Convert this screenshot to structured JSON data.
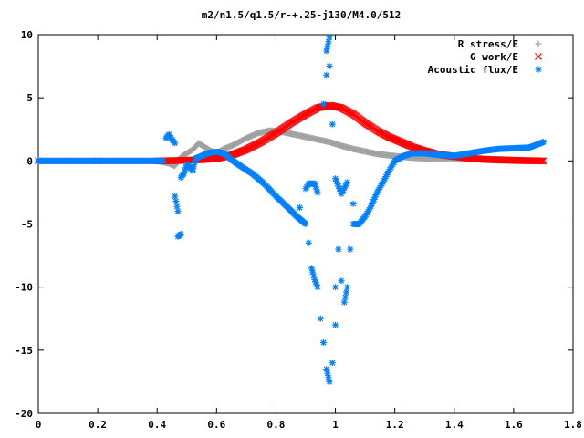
{
  "chart_data": {
    "type": "scatter",
    "title": "m2/n1.5/q1.5/r-+.25-j130/M4.0/512",
    "xlim": [
      0,
      1.8
    ],
    "ylim": [
      -20,
      10
    ],
    "x_ticks": [
      "0",
      "0.2",
      "0.4",
      "0.6",
      "0.8",
      "1",
      "1.2",
      "1.4",
      "1.6",
      "1.8"
    ],
    "y_ticks": [
      "10",
      "5",
      "0",
      "-5",
      "-10",
      "-15",
      "-20"
    ],
    "legend_position": "top-right",
    "series": [
      {
        "name": "R stress/E",
        "marker": "+",
        "color": "#a0a0a0",
        "points": [
          [
            0,
            0
          ],
          [
            0.1,
            0
          ],
          [
            0.2,
            0
          ],
          [
            0.3,
            0
          ],
          [
            0.4,
            0
          ],
          [
            0.44,
            -0.2
          ],
          [
            0.46,
            -0.4
          ],
          [
            0.48,
            0.3
          ],
          [
            0.5,
            0.6
          ],
          [
            0.52,
            0.9
          ],
          [
            0.54,
            1.4
          ],
          [
            0.56,
            1.1
          ],
          [
            0.58,
            0.8
          ],
          [
            0.6,
            0.6
          ],
          [
            0.62,
            0.9
          ],
          [
            0.66,
            1.3
          ],
          [
            0.7,
            1.8
          ],
          [
            0.74,
            2.2
          ],
          [
            0.78,
            2.4
          ],
          [
            0.82,
            2.3
          ],
          [
            0.86,
            2.1
          ],
          [
            0.9,
            1.9
          ],
          [
            0.94,
            1.7
          ],
          [
            0.98,
            1.5
          ],
          [
            1.02,
            1.2
          ],
          [
            1.06,
            0.95
          ],
          [
            1.1,
            0.75
          ],
          [
            1.14,
            0.55
          ],
          [
            1.2,
            0.38
          ],
          [
            1.26,
            0.25
          ],
          [
            1.3,
            0.2
          ],
          [
            1.36,
            0.2
          ],
          [
            1.4,
            0.22
          ],
          [
            1.46,
            0.2
          ],
          [
            1.5,
            0.16
          ],
          [
            1.56,
            0.12
          ],
          [
            1.6,
            0.08
          ],
          [
            1.66,
            0.03
          ],
          [
            1.7,
            0
          ]
        ]
      },
      {
        "name": "G work/E",
        "marker": "x",
        "color": "#ff0000",
        "points": [
          [
            0,
            0
          ],
          [
            0.2,
            0
          ],
          [
            0.4,
            0
          ],
          [
            0.45,
            0.02
          ],
          [
            0.5,
            0.05
          ],
          [
            0.55,
            0.1
          ],
          [
            0.6,
            0.2
          ],
          [
            0.65,
            0.45
          ],
          [
            0.7,
            0.9
          ],
          [
            0.75,
            1.5
          ],
          [
            0.8,
            2.2
          ],
          [
            0.85,
            3
          ],
          [
            0.9,
            3.7
          ],
          [
            0.94,
            4.2
          ],
          [
            0.98,
            4.4
          ],
          [
            1.02,
            4.2
          ],
          [
            1.06,
            3.7
          ],
          [
            1.1,
            3
          ],
          [
            1.14,
            2.4
          ],
          [
            1.18,
            1.9
          ],
          [
            1.22,
            1.5
          ],
          [
            1.26,
            1.1
          ],
          [
            1.3,
            0.8
          ],
          [
            1.34,
            0.55
          ],
          [
            1.4,
            0.35
          ],
          [
            1.46,
            0.2
          ],
          [
            1.5,
            0.12
          ],
          [
            1.56,
            0.07
          ],
          [
            1.62,
            0.03
          ],
          [
            1.7,
            0
          ]
        ]
      },
      {
        "name": "Acoustic flux/E",
        "marker": "*",
        "color": "#0080ff",
        "points": [
          [
            0,
            0
          ],
          [
            0.1,
            0
          ],
          [
            0.2,
            0
          ],
          [
            0.3,
            0
          ],
          [
            0.4,
            0
          ],
          [
            0.42,
            0
          ],
          [
            0.43,
            1.8
          ],
          [
            0.44,
            2.1
          ],
          [
            0.45,
            1.7
          ],
          [
            0.46,
            1.4
          ],
          [
            0.46,
            -2.8
          ],
          [
            0.47,
            -4
          ],
          [
            0.47,
            -6
          ],
          [
            0.48,
            -5.8
          ],
          [
            0.48,
            -1.3
          ],
          [
            0.49,
            -1
          ],
          [
            0.5,
            -0.3
          ],
          [
            0.51,
            -0.5
          ],
          [
            0.52,
            -0.8
          ],
          [
            0.53,
            0.2
          ],
          [
            0.55,
            0.4
          ],
          [
            0.57,
            0.6
          ],
          [
            0.59,
            0.7
          ],
          [
            0.61,
            0.7
          ],
          [
            0.63,
            0.5
          ],
          [
            0.65,
            0.1
          ],
          [
            0.68,
            -0.4
          ],
          [
            0.72,
            -1
          ],
          [
            0.76,
            -1.8
          ],
          [
            0.8,
            -2.8
          ],
          [
            0.84,
            -3.7
          ],
          [
            0.87,
            -4.4
          ],
          [
            0.9,
            -5
          ],
          [
            0.91,
            -6.5
          ],
          [
            0.92,
            -8.5
          ],
          [
            0.93,
            -9.4
          ],
          [
            0.94,
            -10
          ],
          [
            0.95,
            -12.5
          ],
          [
            0.96,
            -14.4
          ],
          [
            0.97,
            -16.5
          ],
          [
            0.98,
            -17.5
          ],
          [
            0.99,
            -16
          ],
          [
            1.0,
            -13
          ],
          [
            1.0,
            -10
          ],
          [
            1.01,
            -7
          ],
          [
            1.02,
            -9.5
          ],
          [
            1.03,
            -11.2
          ],
          [
            1.04,
            -10
          ],
          [
            1.05,
            -7
          ],
          [
            1.06,
            -5
          ],
          [
            1.08,
            -5
          ],
          [
            1.1,
            -4.4
          ],
          [
            1.12,
            -3.6
          ],
          [
            1.14,
            -2.5
          ],
          [
            1.16,
            -1.7
          ],
          [
            1.18,
            -0.8
          ],
          [
            1.2,
            0
          ],
          [
            1.23,
            0.4
          ],
          [
            1.26,
            0.6
          ],
          [
            1.3,
            0.6
          ],
          [
            1.34,
            0.5
          ],
          [
            1.4,
            0.4
          ],
          [
            1.45,
            0.6
          ],
          [
            1.5,
            0.8
          ],
          [
            1.55,
            0.95
          ],
          [
            1.6,
            1
          ],
          [
            1.65,
            1.05
          ],
          [
            1.68,
            1.3
          ],
          [
            1.7,
            1.5
          ],
          [
            0.88,
            -3.7
          ],
          [
            0.9,
            -2.2
          ],
          [
            0.91,
            -1.8
          ],
          [
            0.93,
            -1.8
          ],
          [
            0.94,
            -2.5
          ],
          [
            0.96,
            4.5
          ],
          [
            0.97,
            6.8
          ],
          [
            0.97,
            8.7
          ],
          [
            0.98,
            9.8
          ],
          [
            0.98,
            7.5
          ],
          [
            0.99,
            2.9
          ],
          [
            1.0,
            -1.4
          ],
          [
            1.02,
            -2.6
          ],
          [
            1.04,
            -1.7
          ],
          [
            1.06,
            -3.4
          ]
        ]
      }
    ]
  }
}
